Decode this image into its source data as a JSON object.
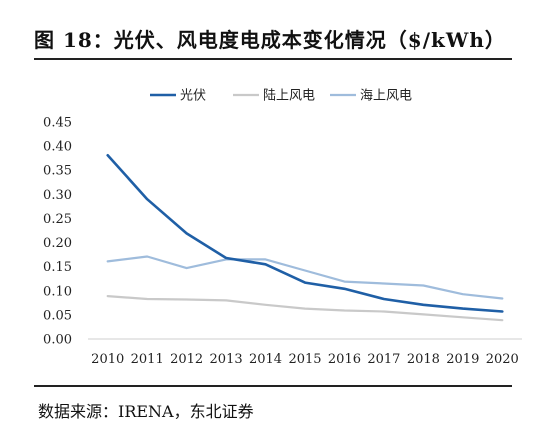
{
  "header": {
    "title": "图 18：光伏、风电度电成本变化情况（$/kWh）"
  },
  "footer": {
    "source": "数据来源：IRENA，东北证券"
  },
  "chart_data": {
    "type": "line",
    "title": "图 18：光伏、风电度电成本变化情况（$/kWh）",
    "xlabel": "",
    "ylabel": "",
    "x": [
      2010,
      2011,
      2012,
      2013,
      2014,
      2015,
      2016,
      2017,
      2018,
      2019,
      2020
    ],
    "ylim": [
      0,
      0.45
    ],
    "yticks": [
      "0.00",
      "0.05",
      "0.10",
      "0.15",
      "0.20",
      "0.25",
      "0.30",
      "0.35",
      "0.40",
      "0.45"
    ],
    "grid": false,
    "legend": "top-center",
    "series": [
      {
        "name": "光伏",
        "color": "#1f5fa6",
        "width": 2.6,
        "values": [
          0.381,
          0.29,
          0.219,
          0.168,
          0.155,
          0.117,
          0.104,
          0.083,
          0.071,
          0.063,
          0.057
        ]
      },
      {
        "name": "陆上风电",
        "color": "#c9c9c9",
        "width": 2.2,
        "values": [
          0.089,
          0.083,
          0.082,
          0.08,
          0.071,
          0.063,
          0.059,
          0.057,
          0.051,
          0.045,
          0.039
        ]
      },
      {
        "name": "海上风电",
        "color": "#9fbcdc",
        "width": 2.2,
        "values": [
          0.161,
          0.171,
          0.147,
          0.165,
          0.165,
          0.142,
          0.119,
          0.115,
          0.111,
          0.093,
          0.084
        ]
      }
    ]
  }
}
